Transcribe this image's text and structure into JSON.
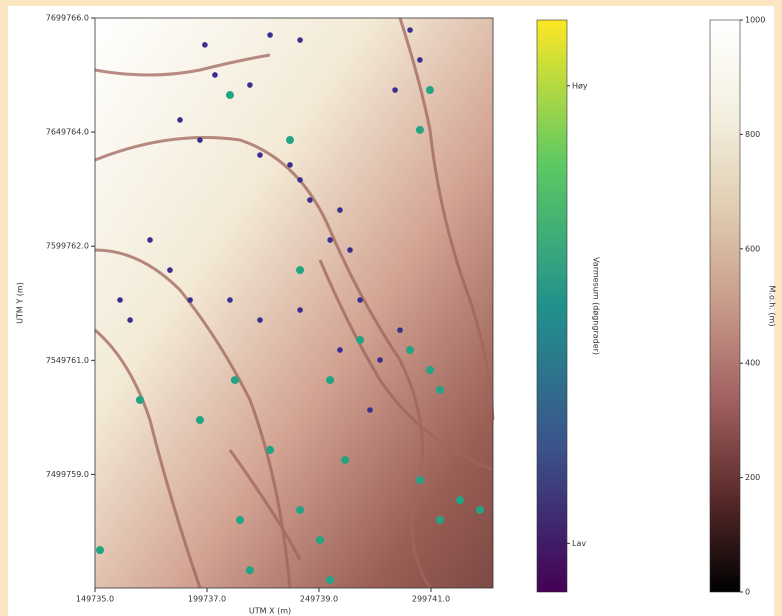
{
  "chart_data": {
    "type": "scatter",
    "xlabel": "UTM X (m)",
    "ylabel": "UTM Y (m)",
    "xlim": [
      149735,
      327435
    ],
    "ylim": [
      7450000,
      7699766
    ],
    "xticks": [
      {
        "value": 149735,
        "label": "149735.0"
      },
      {
        "value": 199737,
        "label": "199737.0"
      },
      {
        "value": 249739,
        "label": "249739.0"
      },
      {
        "value": 299741,
        "label": "299741.0"
      }
    ],
    "yticks": [
      {
        "value": 7499759,
        "label": "7499759.0"
      },
      {
        "value": 7549761,
        "label": "7549761.0"
      },
      {
        "value": 7599762,
        "label": "7599762.0"
      },
      {
        "value": 7649764,
        "label": "7649764.0"
      },
      {
        "value": 7699766,
        "label": "7699766.0"
      }
    ],
    "series": [
      {
        "color": "#3a2f8e",
        "x": [
          198800,
          227900,
          241300,
          203300,
          218900,
          187700,
          196600,
          223400,
          236800,
          241300,
          245700,
          259100,
          254700,
          263600,
          174300,
          183200,
          192200,
          210000,
          223400,
          241300,
          268100,
          259100,
          277000,
          285900,
          160900,
          165400,
          290400,
          294800,
          283700,
          272500
        ],
        "y": [
          7688000,
          7692300,
          7690100,
          7674800,
          7670400,
          7655100,
          7646300,
          7639700,
          7635400,
          7628800,
          7620000,
          7615600,
          7602500,
          7598100,
          7602500,
          7589300,
          7576200,
          7576200,
          7567400,
          7571800,
          7576200,
          7554300,
          7549900,
          7563000,
          7576200,
          7567400,
          7694500,
          7681400,
          7668200,
          7528000
        ]
      },
      {
        "color": "#23a483",
        "x": [
          210000,
          236800,
          241300,
          268100,
          290400,
          299300,
          303800,
          254700,
          227900,
          214500,
          241300,
          250200,
          294800,
          303800,
          312700,
          321600,
          151968,
          169800,
          196600,
          299300,
          294800,
          212200,
          261400,
          218900,
          254700
        ],
        "y": [
          7666000,
          7646300,
          7589300,
          7558700,
          7554300,
          7545500,
          7536800,
          7541100,
          7510500,
          7479800,
          7484200,
          7471000,
          7497300,
          7479800,
          7488500,
          7484200,
          7466600,
          7532400,
          7523600,
          7668200,
          7650700,
          7541100,
          7506100,
          7457800,
          7453500
        ]
      }
    ],
    "colorbars": [
      {
        "label": "Varmesum (døgngrader)",
        "tick_labels": [
          "Høy",
          "Lav"
        ],
        "colormap": [
          "#440154",
          "#3b528b",
          "#21918c",
          "#5ec962",
          "#fde725"
        ]
      },
      {
        "label": "M.o.h. (m)",
        "lim": [
          0,
          1000
        ],
        "ticks": [
          0,
          200,
          400,
          600,
          800,
          1000
        ],
        "colormap": [
          "#000000",
          "#5a2a2a",
          "#a06060",
          "#c89a8a",
          "#e0ccb0",
          "#f4f0e0",
          "#ffffff"
        ]
      }
    ]
  }
}
